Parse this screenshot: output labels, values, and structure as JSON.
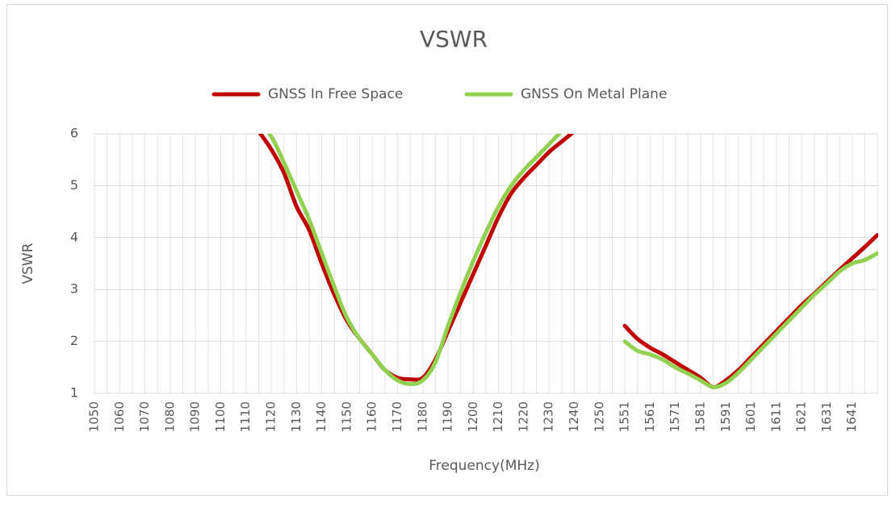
{
  "chart_data": {
    "type": "line",
    "title": "VSWR",
    "x_label": "Frequency(MHz)",
    "y_label": "VSWR",
    "categories": [
      1050,
      1055,
      1060,
      1065,
      1070,
      1075,
      1080,
      1085,
      1090,
      1095,
      1100,
      1105,
      1110,
      1115,
      1120,
      1125,
      1130,
      1135,
      1140,
      1145,
      1150,
      1155,
      1160,
      1165,
      1170,
      1175,
      1180,
      1185,
      1190,
      1195,
      1200,
      1205,
      1210,
      1215,
      1220,
      1225,
      1230,
      1235,
      1240,
      1245,
      1250,
      1255,
      1551,
      1556,
      1561,
      1566,
      1571,
      1576,
      1581,
      1586,
      1591,
      1596,
      1601,
      1606,
      1611,
      1616,
      1621,
      1626,
      1631,
      1636,
      1641,
      1646,
      1651
    ],
    "category_labels": [
      "1050",
      null,
      "1060",
      null,
      "1070",
      null,
      "1080",
      null,
      "1090",
      null,
      "1100",
      null,
      "1110",
      null,
      "1120",
      null,
      "1130",
      null,
      "1140",
      null,
      "1150",
      null,
      "1160",
      null,
      "1170",
      null,
      "1180",
      null,
      "1190",
      null,
      "1200",
      null,
      "1210",
      null,
      "1220",
      null,
      "1230",
      null,
      "1240",
      null,
      "1250",
      null,
      "1551",
      null,
      "1561",
      null,
      "1571",
      null,
      "1581",
      null,
      "1591",
      null,
      "1601",
      null,
      "1611",
      null,
      "1621",
      null,
      "1631",
      null,
      "1641",
      null,
      null
    ],
    "series": [
      {
        "name": "GNSS In Free Space",
        "color": "#c00000",
        "values": [
          null,
          null,
          null,
          null,
          null,
          null,
          null,
          null,
          null,
          null,
          null,
          null,
          null,
          6.05,
          5.7,
          5.25,
          4.6,
          4.15,
          3.5,
          2.9,
          2.4,
          2.05,
          1.75,
          1.45,
          1.3,
          1.27,
          1.3,
          1.65,
          2.2,
          2.75,
          3.3,
          3.85,
          4.4,
          4.85,
          5.15,
          5.4,
          5.65,
          5.85,
          6.05,
          null,
          null,
          null,
          2.3,
          2.05,
          1.88,
          1.75,
          1.6,
          1.45,
          1.3,
          1.12,
          1.25,
          1.45,
          1.7,
          1.95,
          2.2,
          2.45,
          2.7,
          2.92,
          3.15,
          3.38,
          3.6,
          3.82,
          4.05
        ]
      },
      {
        "name": "GNSS On Metal Plane",
        "color": "#92d050",
        "values": [
          null,
          null,
          null,
          null,
          null,
          null,
          null,
          null,
          null,
          null,
          null,
          null,
          null,
          6.2,
          5.95,
          5.45,
          4.9,
          4.35,
          3.7,
          3.05,
          2.45,
          2.05,
          1.75,
          1.45,
          1.25,
          1.18,
          1.25,
          1.6,
          2.3,
          2.95,
          3.55,
          4.1,
          4.6,
          5.0,
          5.3,
          5.55,
          5.8,
          6.05,
          null,
          null,
          null,
          null,
          2.0,
          1.82,
          1.75,
          1.65,
          1.5,
          1.38,
          1.25,
          1.12,
          1.2,
          1.4,
          1.65,
          1.9,
          2.15,
          2.4,
          2.65,
          2.9,
          3.12,
          3.35,
          3.5,
          3.57,
          3.7
        ]
      }
    ],
    "ylim": [
      1,
      6
    ],
    "yticks": [
      1,
      2,
      3,
      4,
      5,
      6
    ],
    "grid": true,
    "legend": "top"
  }
}
